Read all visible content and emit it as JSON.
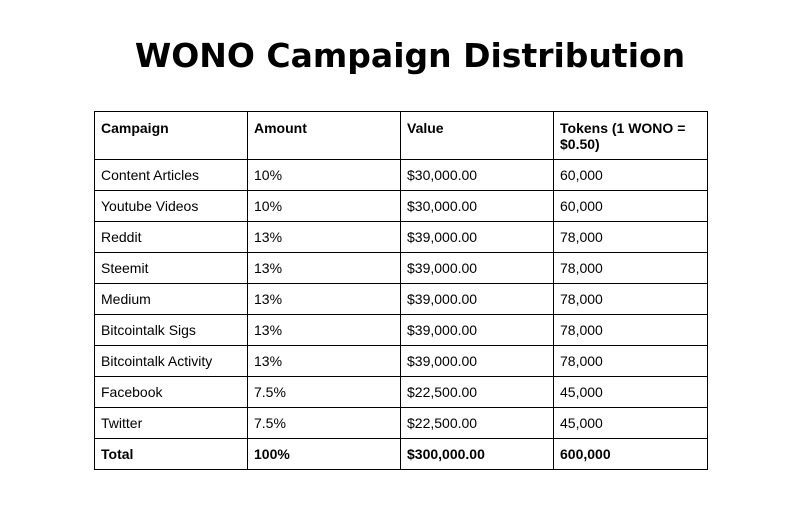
{
  "title": "WONO Campaign Distribution",
  "table": {
    "headers": [
      "Campaign",
      "Amount",
      "Value",
      "Tokens (1 WONO = $0.50)"
    ],
    "rows": [
      [
        "Content Articles",
        "10%",
        "$30,000.00",
        "60,000"
      ],
      [
        "Youtube Videos",
        "10%",
        "$30,000.00",
        "60,000"
      ],
      [
        "Reddit",
        "13%",
        "$39,000.00",
        "78,000"
      ],
      [
        "Steemit",
        "13%",
        "$39,000.00",
        "78,000"
      ],
      [
        "Medium",
        "13%",
        "$39,000.00",
        "78,000"
      ],
      [
        "Bitcointalk Sigs",
        "13%",
        "$39,000.00",
        "78,000"
      ],
      [
        "Bitcointalk Activity",
        "13%",
        "$39,000.00",
        "78,000"
      ],
      [
        "Facebook",
        "7.5%",
        "$22,500.00",
        "45,000"
      ],
      [
        "Twitter",
        "7.5%",
        "$22,500.00",
        "45,000"
      ]
    ],
    "total": [
      "Total",
      "100%",
      "$300,000.00",
      "600,000"
    ]
  }
}
